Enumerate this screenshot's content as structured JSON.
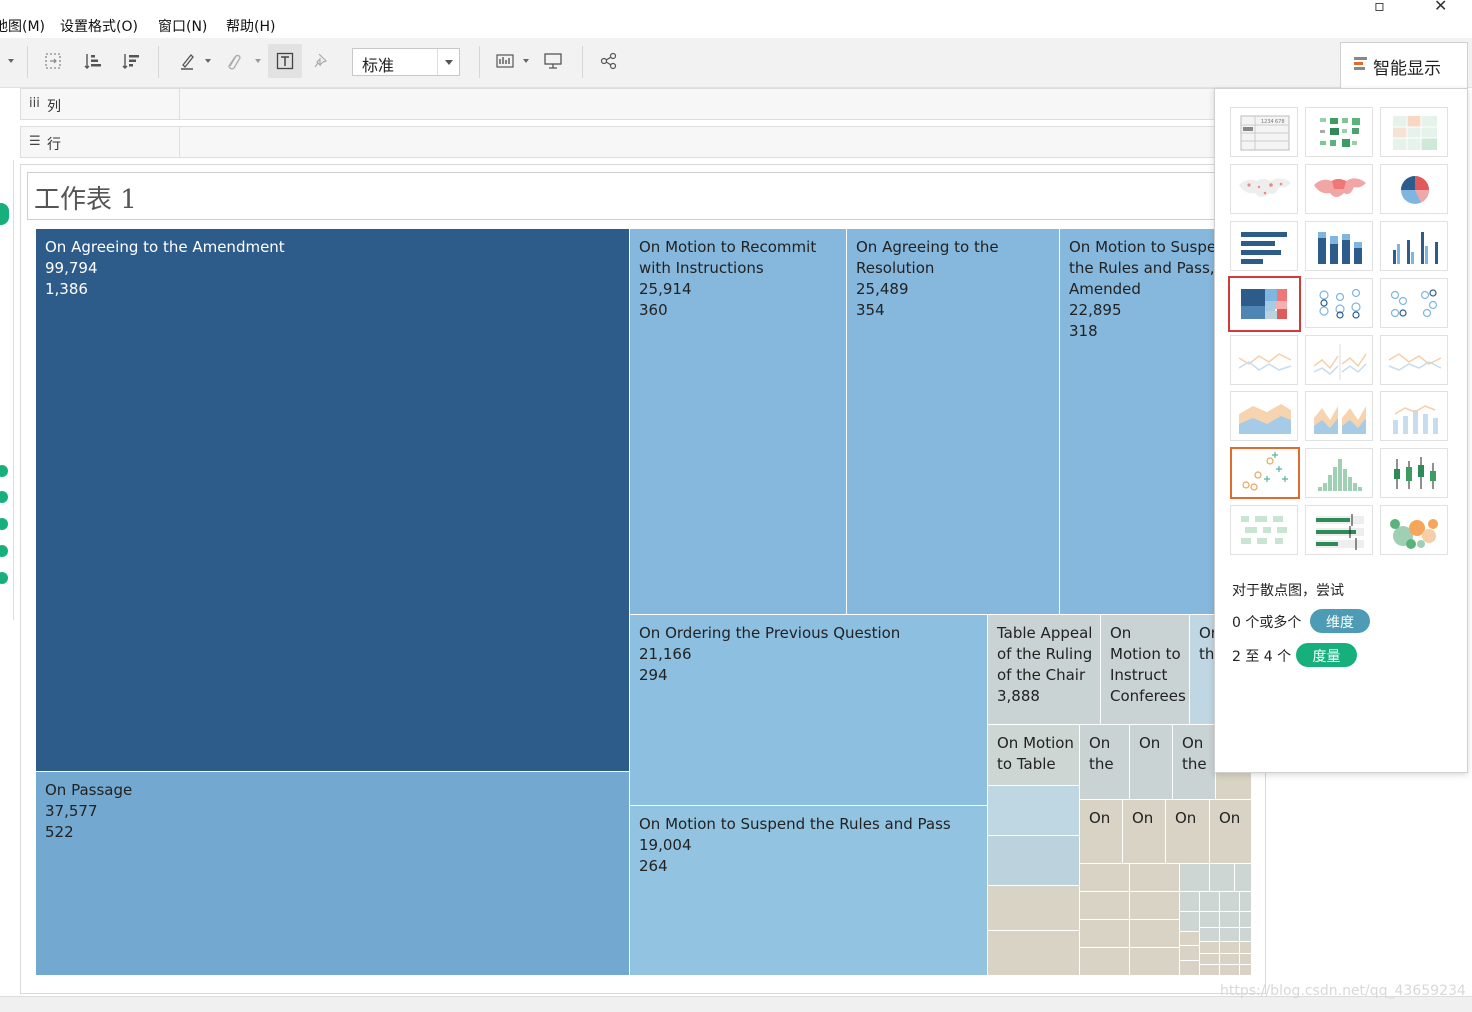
{
  "menu": [
    "地图(M)",
    "设置格式(O)",
    "窗口(N)",
    "帮助(H)"
  ],
  "toolbar": {
    "fit_value": "标准"
  },
  "shelves": {
    "columns": "列",
    "rows": "行"
  },
  "sheet_title": "工作表 1",
  "treemap": [
    {
      "label": "On Agreeing to the Amendment",
      "value1": "99,794",
      "value2": "1,386",
      "color": "#2d5b8a"
    },
    {
      "label": "On Passage",
      "value1": "37,577",
      "value2": "522",
      "color": "#73a8d0"
    },
    {
      "label": "On Motion to Recommit with Instructions",
      "value1": "25,914",
      "value2": "360",
      "color": "#86b8dd"
    },
    {
      "label": "On Agreeing to the Resolution",
      "value1": "25,489",
      "value2": "354",
      "color": "#86b8dd"
    },
    {
      "label": "On Motion to Suspend the Rules and Pass, as Amended",
      "value1": "22,895",
      "value2": "318",
      "color": "#86b8dd"
    },
    {
      "label": "On Ordering the Previous Question",
      "value1": "21,166",
      "value2": "294",
      "color": "#8cbfe0"
    },
    {
      "label": "On Motion to Suspend the Rules and Pass",
      "value1": "19,004",
      "value2": "264",
      "color": "#92c4e2"
    },
    {
      "label": "Table Appeal of the Ruling of the Chair",
      "value1": "3,888",
      "value2": "",
      "color": "#c9d3d3"
    },
    {
      "label": "On Motion to Instruct Conferees",
      "value1": "",
      "value2": "",
      "color": "#c9d3d3"
    },
    {
      "label": "On the",
      "value1": "",
      "value2": "",
      "color": "#bfd6e3"
    },
    {
      "label": "On Motion to Table",
      "value1": "",
      "value2": "",
      "color": "#cdd6d2"
    },
    {
      "label": "On the",
      "value1": "",
      "value2": "",
      "color": "#c9d3d3"
    },
    {
      "label": "On",
      "value1": "",
      "value2": "",
      "color": "#c9d3d3"
    },
    {
      "label": "On the",
      "value1": "",
      "value2": "",
      "color": "#c9d3d3"
    },
    {
      "label": "On",
      "value1": "",
      "value2": "",
      "color": "#d8d3c4"
    },
    {
      "label": "On",
      "value1": "",
      "value2": "",
      "color": "#d8d3c4"
    },
    {
      "label": "On",
      "value1": "",
      "value2": "",
      "color": "#d8d3c4"
    },
    {
      "label": "On",
      "value1": "",
      "value2": "",
      "color": "#d8d3c4"
    }
  ],
  "show_me": {
    "title": "智能显示",
    "hint": "对于散点图，尝试",
    "req1_text": "0 个或多个",
    "req1_pill": "维度",
    "req2_text": "2 至 4 个",
    "req2_pill": "度量",
    "colors": {
      "dimension": "#4d9bb5",
      "measure": "#17b07c",
      "selected_border": "#d13b3b",
      "hover_border": "#e06b2f"
    }
  },
  "watermark": "https://blog.csdn.net/qq_43659234"
}
